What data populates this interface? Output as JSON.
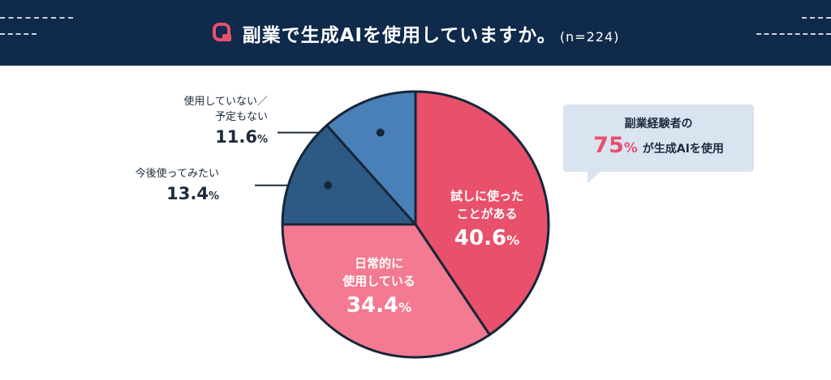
{
  "header": {
    "title": "副業で生成AIを使用していますか。",
    "sample": "(n=224)",
    "icon": "q-icon",
    "background": "#0f2a4a",
    "accent": "#e8506b"
  },
  "callout": {
    "line1": "副業経験者の",
    "highlight_value": "75",
    "highlight_unit": "%",
    "line2_suffix": "が生成AIを使用",
    "background": "#dae4f1"
  },
  "labels": {
    "s0_l1": "試しに使った",
    "s0_l2": "ことがある",
    "s0_value": "40.6",
    "s1_l1": "日常的に",
    "s1_l2": "使用している",
    "s1_value": "34.4",
    "s2_l1": "今後使ってみたい",
    "s2_value": "13.4",
    "s3_l1": "使用していない／",
    "s3_l2": "予定もない",
    "s3_value": "11.6",
    "unit": "%"
  },
  "chart_data": {
    "type": "pie",
    "title": "副業で生成AIを使用していますか。",
    "sample_size": "n=224",
    "unit": "%",
    "categories": [
      "試しに使ったことがある",
      "日常的に使用している",
      "今後使ってみたい",
      "使用していない／予定もない"
    ],
    "values": [
      40.6,
      34.4,
      13.4,
      11.6
    ],
    "colors": [
      "#e8506b",
      "#f47a91",
      "#2c5a85",
      "#4a80b8"
    ],
    "start": "12 o'clock",
    "direction": "clockwise",
    "annotation": "副業経験者の75%が生成AIを使用"
  }
}
